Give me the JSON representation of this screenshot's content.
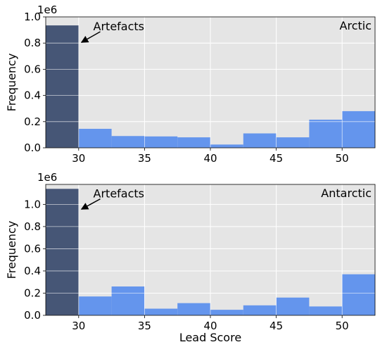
{
  "colors": {
    "plot_background": "#e5e5e5",
    "grid": "#ffffff",
    "bar_regular": "#6495ed",
    "bar_artefact": "#465676",
    "text": "#000000"
  },
  "chart_data": [
    {
      "type": "bar",
      "panel_label": "Arctic",
      "offset_label": "1e6",
      "ylabel": "Frequency",
      "xlabel": "",
      "xlim": [
        27.5,
        52.5
      ],
      "ylim": [
        0,
        1.0
      ],
      "xticks": [
        30,
        35,
        40,
        45,
        50
      ],
      "yticks": [
        0.0,
        0.2,
        0.4,
        0.6,
        0.8,
        1.0
      ],
      "grid": true,
      "annotation": {
        "text": "Artefacts",
        "arrow_to": [
          30.05,
          0.8
        ],
        "text_at": [
          31.0,
          0.93
        ]
      },
      "bins": [
        {
          "x0": 27.5,
          "x1": 30.0,
          "value": 0.935,
          "artefact": true
        },
        {
          "x0": 30.0,
          "x1": 32.5,
          "value": 0.145,
          "artefact": false
        },
        {
          "x0": 32.5,
          "x1": 35.0,
          "value": 0.09,
          "artefact": false
        },
        {
          "x0": 35.0,
          "x1": 37.5,
          "value": 0.087,
          "artefact": false
        },
        {
          "x0": 37.5,
          "x1": 40.0,
          "value": 0.08,
          "artefact": false
        },
        {
          "x0": 40.0,
          "x1": 42.5,
          "value": 0.025,
          "artefact": false
        },
        {
          "x0": 42.5,
          "x1": 45.0,
          "value": 0.11,
          "artefact": false
        },
        {
          "x0": 45.0,
          "x1": 47.5,
          "value": 0.08,
          "artefact": false
        },
        {
          "x0": 47.5,
          "x1": 50.0,
          "value": 0.215,
          "artefact": false
        },
        {
          "x0": 50.0,
          "x1": 52.5,
          "value": 0.28,
          "artefact": false
        }
      ]
    },
    {
      "type": "bar",
      "panel_label": "Antarctic",
      "offset_label": "1e6",
      "ylabel": "Frequency",
      "xlabel": "Lead Score",
      "xlim": [
        27.5,
        52.5
      ],
      "ylim": [
        0,
        1.18
      ],
      "xticks": [
        30,
        35,
        40,
        45,
        50
      ],
      "yticks": [
        0.0,
        0.2,
        0.4,
        0.6,
        0.8,
        1.0
      ],
      "grid": true,
      "annotation": {
        "text": "Artefacts",
        "arrow_to": [
          30.05,
          0.95
        ],
        "text_at": [
          31.0,
          1.1
        ]
      },
      "bins": [
        {
          "x0": 27.5,
          "x1": 30.0,
          "value": 1.14,
          "artefact": true
        },
        {
          "x0": 30.0,
          "x1": 32.5,
          "value": 0.17,
          "artefact": false
        },
        {
          "x0": 32.5,
          "x1": 35.0,
          "value": 0.26,
          "artefact": false
        },
        {
          "x0": 35.0,
          "x1": 37.5,
          "value": 0.06,
          "artefact": false
        },
        {
          "x0": 37.5,
          "x1": 40.0,
          "value": 0.11,
          "artefact": false
        },
        {
          "x0": 40.0,
          "x1": 42.5,
          "value": 0.05,
          "artefact": false
        },
        {
          "x0": 42.5,
          "x1": 45.0,
          "value": 0.09,
          "artefact": false
        },
        {
          "x0": 45.0,
          "x1": 47.5,
          "value": 0.16,
          "artefact": false
        },
        {
          "x0": 47.5,
          "x1": 50.0,
          "value": 0.08,
          "artefact": false
        },
        {
          "x0": 50.0,
          "x1": 52.5,
          "value": 0.37,
          "artefact": false
        }
      ]
    }
  ]
}
